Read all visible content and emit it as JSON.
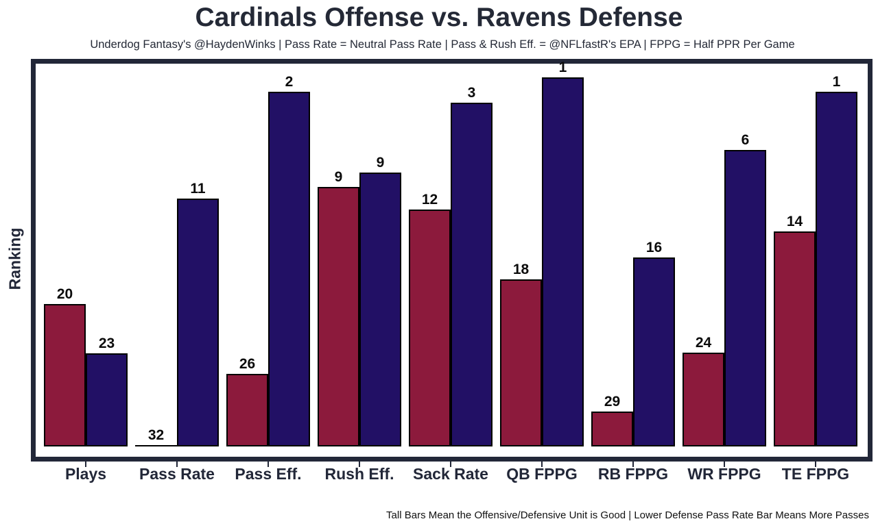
{
  "title": "Cardinals Offense vs. Ravens Defense",
  "subtitle": "Underdog Fantasy's @HaydenWinks | Pass Rate = Neutral Pass Rate | Pass & Rush Eff. = @NFLfastR's EPA | FPPG = Half PPR Per Game",
  "footnote": "Tall Bars Mean the Offensive/Defensive Unit is Good | Lower Defense Pass Rate Bar Means More Passes",
  "colors": {
    "offense_bar": "#8c1a3c",
    "defense_bar": "#221065",
    "frame": "#222738",
    "axis_text": "#222738",
    "value_label": "#0b0b0b",
    "background": "#ffffff"
  },
  "chart_data": {
    "type": "bar",
    "title": "Cardinals Offense vs. Ravens Defense",
    "ylabel": "Ranking",
    "xlabel": "",
    "legend": "none",
    "grid": false,
    "value_labels_shown": true,
    "categories": [
      "Plays",
      "Pass Rate",
      "Pass Eff.",
      "Rush Eff.",
      "Sack Rate",
      "QB FPPG",
      "RB FPPG",
      "WR FPPG",
      "TE FPPG"
    ],
    "series": [
      {
        "name": "Cardinals Offense",
        "color": "#8c1a3c",
        "ranks": [
          20,
          32,
          26,
          9,
          12,
          18,
          29,
          24,
          14
        ],
        "bar_height_frac": [
          0.363,
          0.004,
          0.185,
          0.661,
          0.604,
          0.426,
          0.089,
          0.239,
          0.548
        ]
      },
      {
        "name": "Ravens Defense",
        "color": "#221065",
        "ranks": [
          23,
          11,
          2,
          9,
          3,
          1,
          16,
          6,
          1
        ],
        "bar_height_frac": [
          0.237,
          0.632,
          0.904,
          0.698,
          0.876,
          0.941,
          0.482,
          0.756,
          0.904
        ]
      }
    ]
  }
}
